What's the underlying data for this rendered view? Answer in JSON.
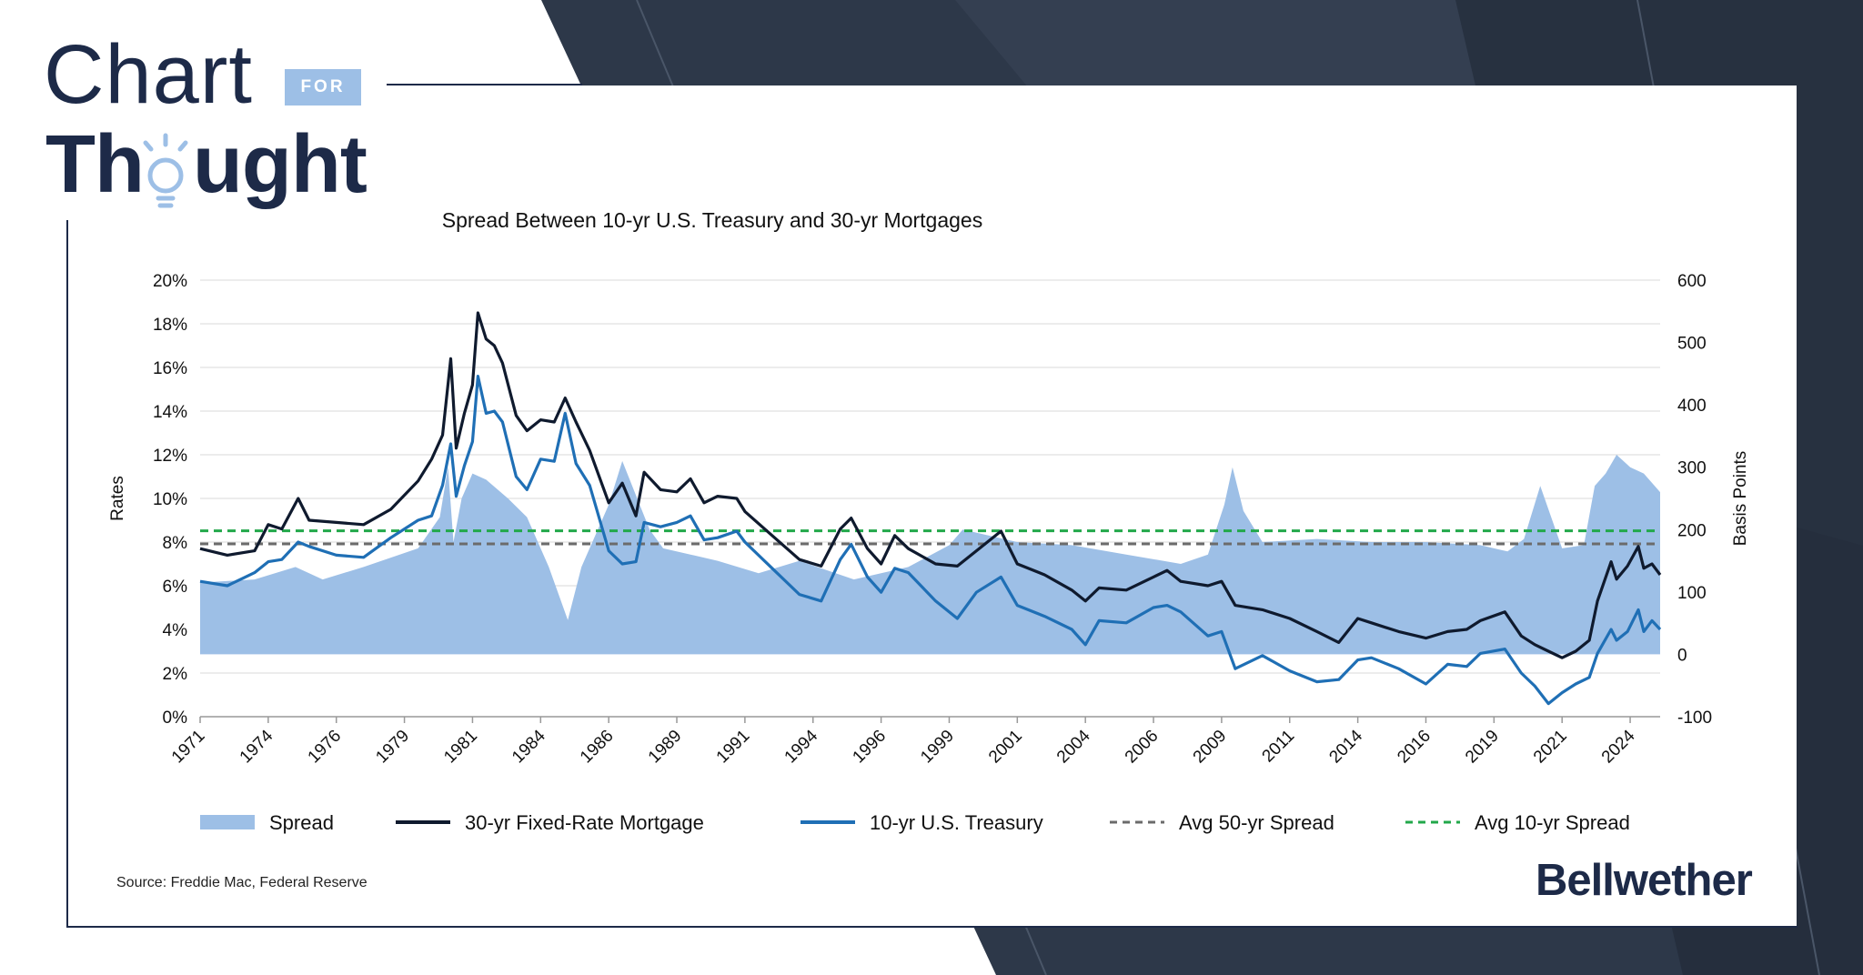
{
  "brand": {
    "chart_word": "Chart",
    "for_word": "FOR",
    "thought_word": "Thought",
    "company": "Bellwether",
    "colors": {
      "navy": "#1d2a48",
      "light_blue": "#9dbfe6"
    }
  },
  "source": "Source: Freddie Mac, Federal Reserve",
  "chart_data": {
    "type": "line",
    "title": "Spread Between 10-yr U.S. Treasury and 30-yr Mortgages",
    "ylabel": "Rates",
    "y2label": "Basis Points",
    "ylim": [
      0,
      20
    ],
    "y2lim": [
      -100,
      600
    ],
    "xlim": [
      1971.0,
      2024.6
    ],
    "y_ticks": [
      0,
      2,
      4,
      6,
      8,
      10,
      12,
      14,
      16,
      18,
      20
    ],
    "y_tick_labels": [
      "0%",
      "2%",
      "4%",
      "6%",
      "8%",
      "10%",
      "12%",
      "14%",
      "16%",
      "18%",
      "20%"
    ],
    "y2_ticks": [
      -100,
      0,
      100,
      200,
      300,
      400,
      500,
      600
    ],
    "y2_tick_labels": [
      "-100",
      "0",
      "100",
      "200",
      "300",
      "400",
      "500",
      "600"
    ],
    "x_ticks": [
      1971.0,
      1973.5,
      1976.0,
      1978.5,
      1981.0,
      1983.5,
      1986.0,
      1988.5,
      1991.0,
      1993.5,
      1996.0,
      1998.5,
      2001.0,
      2003.5,
      2006.0,
      2008.5,
      2011.0,
      2013.5,
      2016.0,
      2018.5,
      2021.0,
      2023.5
    ],
    "x_tick_labels": [
      "1971",
      "1974",
      "1976",
      "1979",
      "1981",
      "1984",
      "1986",
      "1989",
      "1991",
      "1994",
      "1996",
      "1999",
      "2001",
      "2004",
      "2006",
      "2009",
      "2011",
      "2014",
      "2016",
      "2019",
      "2021",
      "2024"
    ],
    "legend": [
      "Spread",
      "30-yr Fixed-Rate Mortgage",
      "10-yr U.S. Treasury",
      "Avg 50-yr Spread",
      "Avg 10-yr Spread"
    ],
    "legend_placement": "bottom",
    "grid": true,
    "series": [
      {
        "name": "30-yr Fixed-Rate Mortgage",
        "axis": "left",
        "color": "#0f1a2e",
        "x": [
          1971.0,
          1972.0,
          1973.0,
          1973.5,
          1974.0,
          1974.6,
          1975.0,
          1976.0,
          1977.0,
          1978.0,
          1979.0,
          1979.5,
          1979.9,
          1980.2,
          1980.4,
          1980.7,
          1981.0,
          1981.2,
          1981.5,
          1981.8,
          1982.1,
          1982.6,
          1983.0,
          1983.5,
          1984.0,
          1984.4,
          1984.8,
          1985.3,
          1986.0,
          1986.5,
          1987.0,
          1987.3,
          1987.9,
          1988.5,
          1989.0,
          1989.5,
          1990.0,
          1990.7,
          1991.0,
          1992.0,
          1993.0,
          1993.8,
          1994.5,
          1994.9,
          1995.5,
          1996.0,
          1996.5,
          1997.0,
          1998.0,
          1998.8,
          1999.5,
          2000.4,
          2001.0,
          2002.0,
          2003.0,
          2003.5,
          2004.0,
          2005.0,
          2006.0,
          2006.5,
          2007.0,
          2008.0,
          2008.5,
          2009.0,
          2010.0,
          2011.0,
          2012.0,
          2012.8,
          2013.5,
          2014.0,
          2015.0,
          2016.0,
          2016.8,
          2017.5,
          2018.0,
          2018.9,
          2019.5,
          2020.0,
          2020.5,
          2021.0,
          2021.5,
          2022.0,
          2022.3,
          2022.8,
          2023.0,
          2023.4,
          2023.8,
          2024.0,
          2024.3,
          2024.6
        ],
        "values": [
          7.7,
          7.4,
          7.6,
          8.8,
          8.6,
          10.0,
          9.0,
          8.9,
          8.8,
          9.5,
          10.8,
          11.8,
          12.9,
          16.4,
          12.3,
          13.9,
          15.2,
          18.5,
          17.3,
          17.0,
          16.2,
          13.8,
          13.1,
          13.6,
          13.5,
          14.6,
          13.5,
          12.2,
          9.8,
          10.7,
          9.2,
          11.2,
          10.4,
          10.3,
          10.9,
          9.8,
          10.1,
          10.0,
          9.4,
          8.3,
          7.2,
          6.9,
          8.6,
          9.1,
          7.7,
          7.0,
          8.3,
          7.7,
          7.0,
          6.9,
          7.6,
          8.5,
          7.0,
          6.5,
          5.8,
          5.3,
          5.9,
          5.8,
          6.4,
          6.7,
          6.2,
          6.0,
          6.2,
          5.1,
          4.9,
          4.5,
          3.9,
          3.4,
          4.5,
          4.3,
          3.9,
          3.6,
          3.9,
          4.0,
          4.4,
          4.8,
          3.7,
          3.3,
          3.0,
          2.7,
          3.0,
          3.5,
          5.3,
          7.1,
          6.3,
          6.9,
          7.8,
          6.8,
          7.0,
          6.5
        ]
      },
      {
        "name": "10-yr U.S. Treasury",
        "axis": "left",
        "color": "#1f6fb5",
        "x": [
          1971.0,
          1972.0,
          1973.0,
          1973.5,
          1974.0,
          1974.6,
          1975.0,
          1976.0,
          1977.0,
          1978.0,
          1979.0,
          1979.5,
          1979.9,
          1980.2,
          1980.4,
          1980.7,
          1981.0,
          1981.2,
          1981.5,
          1981.8,
          1982.1,
          1982.6,
          1983.0,
          1983.5,
          1984.0,
          1984.4,
          1984.8,
          1985.3,
          1986.0,
          1986.5,
          1987.0,
          1987.3,
          1987.9,
          1988.5,
          1989.0,
          1989.5,
          1990.0,
          1990.7,
          1991.0,
          1992.0,
          1993.0,
          1993.8,
          1994.5,
          1994.9,
          1995.5,
          1996.0,
          1996.5,
          1997.0,
          1998.0,
          1998.8,
          1999.5,
          2000.4,
          2001.0,
          2002.0,
          2003.0,
          2003.5,
          2004.0,
          2005.0,
          2006.0,
          2006.5,
          2007.0,
          2008.0,
          2008.5,
          2009.0,
          2010.0,
          2011.0,
          2012.0,
          2012.8,
          2013.5,
          2014.0,
          2015.0,
          2016.0,
          2016.8,
          2017.5,
          2018.0,
          2018.9,
          2019.5,
          2020.0,
          2020.5,
          2021.0,
          2021.5,
          2022.0,
          2022.3,
          2022.8,
          2023.0,
          2023.4,
          2023.8,
          2024.0,
          2024.3,
          2024.6
        ],
        "values": [
          6.2,
          6.0,
          6.6,
          7.1,
          7.2,
          8.0,
          7.8,
          7.4,
          7.3,
          8.2,
          9.0,
          9.2,
          10.6,
          12.5,
          10.1,
          11.5,
          12.6,
          15.6,
          13.9,
          14.0,
          13.5,
          11.0,
          10.4,
          11.8,
          11.7,
          13.9,
          11.6,
          10.6,
          7.6,
          7.0,
          7.1,
          8.9,
          8.7,
          8.9,
          9.2,
          8.1,
          8.2,
          8.5,
          8.0,
          6.8,
          5.6,
          5.3,
          7.2,
          7.9,
          6.4,
          5.7,
          6.8,
          6.6,
          5.3,
          4.5,
          5.7,
          6.4,
          5.1,
          4.6,
          4.0,
          3.3,
          4.4,
          4.3,
          5.0,
          5.1,
          4.8,
          3.7,
          3.9,
          2.2,
          2.8,
          2.1,
          1.6,
          1.7,
          2.6,
          2.7,
          2.2,
          1.5,
          2.4,
          2.3,
          2.9,
          3.1,
          2.0,
          1.4,
          0.6,
          1.1,
          1.5,
          1.8,
          2.9,
          4.0,
          3.5,
          3.9,
          4.9,
          3.9,
          4.4,
          4.0
        ]
      },
      {
        "name": "Spread",
        "axis": "right",
        "color": "#9dbfe6",
        "type": "area",
        "x": [
          1971.0,
          1973.0,
          1974.5,
          1975.5,
          1977.0,
          1979.0,
          1979.8,
          1980.1,
          1980.3,
          1980.6,
          1981.0,
          1981.5,
          1982.3,
          1983.0,
          1983.8,
          1984.5,
          1985.0,
          1986.0,
          1986.5,
          1987.5,
          1988.0,
          1989.0,
          1990.0,
          1991.5,
          1993.0,
          1995.0,
          1997.0,
          1998.5,
          1999.0,
          2000.0,
          2001.0,
          2003.0,
          2005.0,
          2007.0,
          2008.0,
          2008.6,
          2008.9,
          2009.3,
          2010.0,
          2012.0,
          2014.0,
          2016.0,
          2018.0,
          2019.0,
          2019.6,
          2020.2,
          2021.0,
          2021.8,
          2022.2,
          2022.6,
          2023.0,
          2023.5,
          2024.0,
          2024.6
        ],
        "values": [
          115,
          120,
          140,
          120,
          140,
          170,
          220,
          300,
          180,
          250,
          290,
          280,
          250,
          220,
          140,
          55,
          140,
          240,
          310,
          200,
          170,
          160,
          150,
          130,
          150,
          120,
          140,
          175,
          200,
          190,
          180,
          175,
          160,
          145,
          160,
          240,
          300,
          230,
          180,
          185,
          180,
          180,
          175,
          165,
          185,
          270,
          170,
          175,
          270,
          290,
          320,
          300,
          290,
          260
        ]
      },
      {
        "name": "Avg 50-yr Spread",
        "axis": "right",
        "color": "#6b6b6b",
        "style": "dashed",
        "values": [
          177
        ]
      },
      {
        "name": "Avg 10-yr Spread",
        "axis": "right",
        "color": "#22a84a",
        "style": "dashed",
        "values": [
          198
        ]
      }
    ]
  }
}
